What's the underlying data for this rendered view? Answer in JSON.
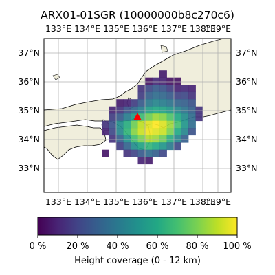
{
  "title": "ARX01-01SGR (10000000b8c270c6)",
  "lon_ticks": [
    "133°E",
    "134°E",
    "135°E",
    "136°E",
    "137°E",
    "138°E",
    "139°E"
  ],
  "lat_ticks": [
    "33°N",
    "34°N",
    "35°N",
    "36°N",
    "37°N"
  ],
  "extent": {
    "lon_min": 132.95,
    "lon_max": 139.5,
    "lat_min": 32.2,
    "lat_max": 37.55
  },
  "grid": true,
  "colors": {
    "land": "#f0eedc",
    "sea": "#ffffff",
    "coast": "#000000",
    "grid": "#b0b0b0",
    "marker": "#ff0000"
  },
  "site_marker": {
    "lon": 136.1,
    "lat": 34.85,
    "shape": "triangle"
  },
  "colorbar": {
    "label": "Height coverage (0 - 12 km)",
    "ticks": [
      "0 %",
      "20 %",
      "40 %",
      "60 %",
      "80 %",
      "100 %"
    ],
    "colormap": "viridis"
  },
  "coverage_grid": {
    "cell_deg": 0.25,
    "origin_lon": 134.25,
    "origin_lat": 36.65,
    "rows_north_to_south": [
      [
        null,
        null,
        null,
        null,
        null,
        null,
        null,
        null,
        null,
        null,
        null,
        null,
        null,
        null,
        null,
        null,
        null
      ],
      [
        null,
        null,
        null,
        null,
        null,
        null,
        null,
        null,
        null,
        0.08,
        null,
        null,
        null,
        null,
        null,
        null,
        null
      ],
      [
        null,
        null,
        null,
        null,
        null,
        null,
        null,
        0.05,
        0.12,
        0.1,
        0.05,
        0.05,
        null,
        null,
        null,
        null,
        null
      ],
      [
        null,
        null,
        null,
        null,
        null,
        null,
        0.15,
        0.22,
        0.28,
        0.25,
        0.18,
        0.1,
        0.12,
        0.1,
        null,
        null,
        null
      ],
      [
        null,
        null,
        null,
        null,
        null,
        null,
        0.18,
        0.3,
        0.35,
        0.33,
        0.28,
        0.2,
        0.22,
        0.15,
        null,
        null,
        null
      ],
      [
        null,
        null,
        null,
        0.08,
        0.1,
        0.18,
        0.28,
        0.4,
        0.45,
        0.42,
        0.38,
        0.32,
        0.3,
        0.25,
        null,
        null,
        null
      ],
      [
        null,
        null,
        0.1,
        0.15,
        0.25,
        0.33,
        0.42,
        0.55,
        0.6,
        0.58,
        0.52,
        0.45,
        0.38,
        0.3,
        0.15,
        null,
        null
      ],
      [
        null,
        null,
        0.18,
        0.28,
        0.42,
        0.55,
        0.68,
        0.78,
        0.85,
        0.82,
        0.72,
        0.6,
        0.48,
        0.35,
        0.15,
        null,
        null
      ],
      [
        null,
        0.15,
        0.25,
        0.48,
        0.62,
        0.78,
        0.9,
        0.95,
        1.0,
        0.95,
        0.85,
        0.7,
        0.52,
        0.35,
        null,
        null,
        null
      ],
      [
        null,
        0.1,
        0.22,
        0.45,
        0.65,
        0.82,
        0.92,
        0.98,
        0.95,
        0.92,
        0.8,
        0.6,
        0.45,
        0.25,
        null,
        null,
        null
      ],
      [
        null,
        null,
        0.15,
        0.3,
        0.5,
        0.7,
        0.8,
        0.88,
        0.85,
        0.78,
        0.62,
        0.45,
        0.3,
        null,
        null,
        null,
        null
      ],
      [
        null,
        null,
        null,
        0.18,
        0.32,
        0.48,
        0.58,
        0.65,
        0.6,
        0.52,
        0.4,
        0.22,
        null,
        null,
        null,
        null,
        null
      ],
      [
        null,
        0.06,
        null,
        null,
        0.15,
        0.2,
        0.28,
        0.35,
        0.3,
        0.22,
        null,
        null,
        null,
        null,
        null,
        null,
        null
      ],
      [
        null,
        null,
        null,
        null,
        null,
        null,
        0.1,
        0.08,
        null,
        null,
        null,
        null,
        null,
        null,
        null,
        null,
        null
      ]
    ]
  }
}
